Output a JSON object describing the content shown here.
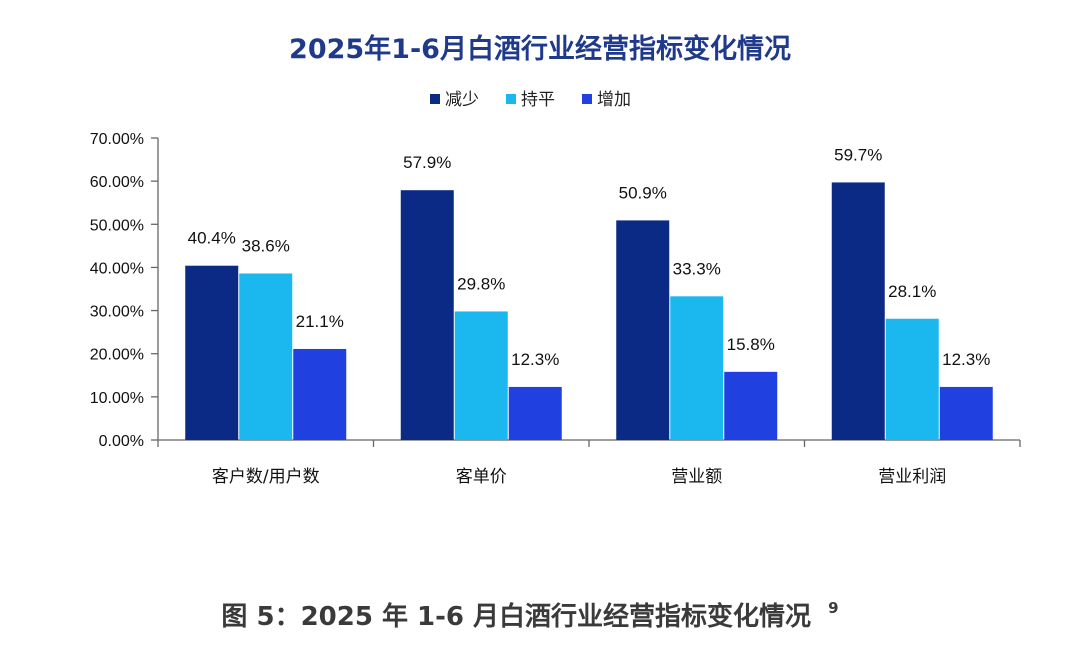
{
  "colors": {
    "title": "#1f3a8a",
    "caption": "#3a3a3a",
    "axis": "#666666"
  },
  "chart_data": {
    "type": "bar",
    "title": "2025年1-6月白酒行业经营指标变化情况",
    "categories": [
      "客户数/用户数",
      "客单价",
      "营业额",
      "营业利润"
    ],
    "series": [
      {
        "name": "减少",
        "color": "#0b2a86",
        "values": [
          40.4,
          57.9,
          50.9,
          59.7
        ]
      },
      {
        "name": "持平",
        "color": "#1ab8ef",
        "values": [
          38.6,
          29.8,
          33.3,
          28.1
        ]
      },
      {
        "name": "增加",
        "color": "#2140e0",
        "values": [
          21.1,
          12.3,
          15.8,
          12.3
        ]
      }
    ],
    "data_labels": [
      [
        "40.4%",
        "57.9%",
        "50.9%",
        "59.7%"
      ],
      [
        "38.6%",
        "29.8%",
        "33.3%",
        "28.1%"
      ],
      [
        "21.1%",
        "12.3%",
        "15.8%",
        "12.3%"
      ]
    ],
    "yticks": [
      "0.00%",
      "10.00%",
      "20.00%",
      "30.00%",
      "40.00%",
      "50.00%",
      "60.00%",
      "70.00%"
    ],
    "ylim": [
      0,
      70
    ],
    "ytick_step": 10,
    "xlabel": "",
    "ylabel": "",
    "grid": false,
    "legend_position": "top-center"
  },
  "caption": {
    "text": "图 5：2025 年 1-6 月白酒行业经营指标变化情况",
    "note": "9"
  }
}
